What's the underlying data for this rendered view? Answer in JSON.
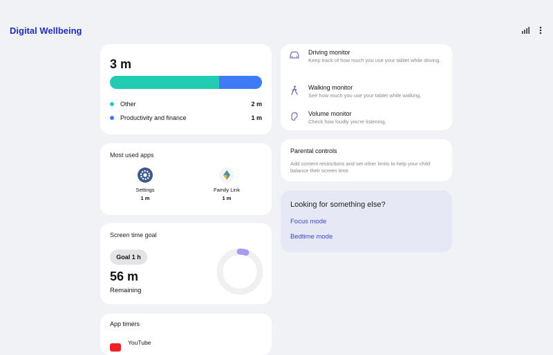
{
  "header": {
    "title": "Digital Wellbeing"
  },
  "usage": {
    "total": "3 m",
    "segments": [
      {
        "label": "Other",
        "time": "2 m",
        "color": "#20cdb2",
        "fraction": 0.72
      },
      {
        "label": "Productivity and finance",
        "time": "1 m",
        "color": "#3e7bf7",
        "fraction": 0.28
      }
    ]
  },
  "most_used": {
    "title": "Most used apps",
    "apps": [
      {
        "name": "Settings",
        "time": "1 m"
      },
      {
        "name": "Family Link",
        "time": "1 m"
      }
    ]
  },
  "goal": {
    "title": "Screen time goal",
    "goal_label": "Goal 1 h",
    "remaining_time": "56 m",
    "remaining_label": "Remaining",
    "progress_fraction": 0.05,
    "progress_color": "#a99cf0",
    "track_color": "#f0f0f2"
  },
  "timers": {
    "title": "App timers",
    "apps": [
      {
        "name": "YouTube"
      }
    ]
  },
  "monitors": [
    {
      "title": "Driving monitor",
      "desc": "Keep track of how much you use your tablet while driving.",
      "icon": "car-icon"
    },
    {
      "title": "Walking monitor",
      "desc": "See how much you use your tablet while walking.",
      "icon": "walking-icon"
    },
    {
      "title": "Volume monitor",
      "desc": "Check how loudly you're listening.",
      "icon": "ear-icon"
    }
  ],
  "parental": {
    "title": "Parental controls",
    "desc": "Add content restrictions and set other limits to help your child balance their screen time."
  },
  "else": {
    "title": "Looking for something else?",
    "links": [
      "Focus mode",
      "Bedtime mode"
    ]
  }
}
